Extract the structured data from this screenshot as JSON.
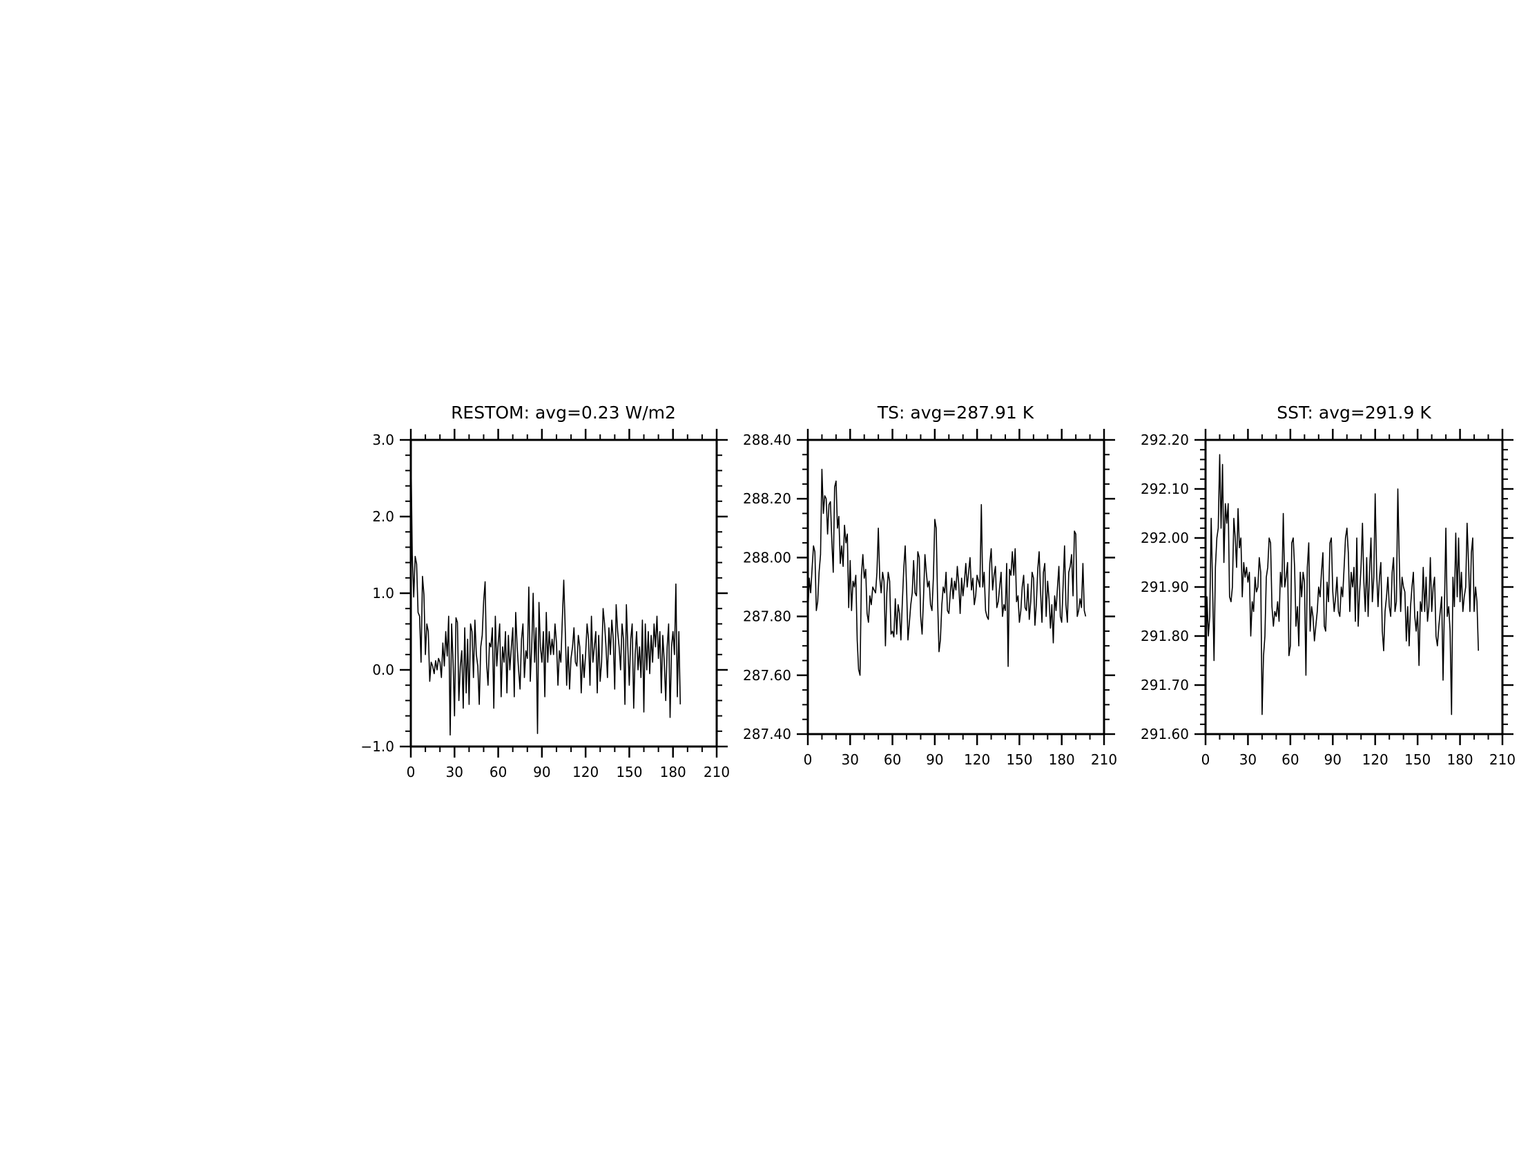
{
  "chart_data": [
    {
      "type": "line",
      "title": "RESTOM: avg=0.23 W/m2",
      "xlim": [
        0,
        210
      ],
      "ylim": [
        -1.0,
        3.0
      ],
      "xticks": [
        0,
        30,
        60,
        90,
        120,
        150,
        180,
        210
      ],
      "yticks": [
        -1.0,
        0.0,
        1.0,
        2.0,
        3.0
      ],
      "ytick_labels": [
        "−1.0",
        "0.0",
        "1.0",
        "2.0",
        "3.0"
      ],
      "x_minor_step": 10,
      "y_minor_step": 0.2,
      "grid": false,
      "legend": "none",
      "line_color": "#000000",
      "series": [
        {
          "x_start": 0,
          "x_step": 1,
          "values": [
            3.0,
            1.5,
            0.95,
            1.48,
            1.38,
            0.75,
            0.7,
            0.1,
            1.22,
            0.98,
            0.2,
            0.6,
            0.5,
            -0.15,
            0.1,
            0.05,
            -0.05,
            0.12,
            0.0,
            0.15,
            0.1,
            -0.1,
            0.35,
            0.05,
            0.5,
            0.18,
            0.7,
            -0.85,
            0.6,
            0.1,
            -0.6,
            0.68,
            0.62,
            -0.4,
            0.05,
            0.25,
            -0.5,
            0.55,
            -0.3,
            0.4,
            -0.45,
            0.6,
            0.5,
            -0.1,
            0.65,
            0.2,
            0.05,
            -0.45,
            0.3,
            0.45,
            0.9,
            1.15,
            0.1,
            -0.2,
            0.35,
            0.3,
            0.55,
            -0.5,
            0.7,
            0.05,
            0.35,
            0.6,
            -0.35,
            0.3,
            0.1,
            0.5,
            -0.3,
            0.45,
            0.0,
            0.3,
            0.55,
            -0.35,
            0.75,
            0.3,
            0.0,
            -0.25,
            0.4,
            0.6,
            -0.1,
            0.25,
            0.15,
            1.08,
            -0.15,
            0.3,
            1.0,
            0.1,
            0.55,
            -0.83,
            0.88,
            0.3,
            0.1,
            0.5,
            -0.35,
            0.75,
            0.1,
            0.5,
            0.2,
            0.4,
            0.2,
            0.6,
            0.35,
            -0.2,
            0.25,
            0.1,
            0.65,
            1.17,
            0.55,
            -0.2,
            0.3,
            -0.25,
            0.15,
            0.3,
            0.55,
            0.1,
            0.05,
            0.45,
            0.3,
            -0.3,
            0.2,
            -0.1,
            0.2,
            0.6,
            0.4,
            -0.2,
            0.7,
            0.1,
            0.3,
            0.5,
            -0.3,
            0.45,
            -0.15,
            0.1,
            0.8,
            0.6,
            0.3,
            -0.1,
            0.55,
            0.2,
            0.65,
            0.4,
            -0.25,
            0.85,
            0.5,
            0.3,
            0.0,
            0.6,
            0.4,
            -0.45,
            0.85,
            0.3,
            -0.2,
            0.4,
            0.6,
            -0.5,
            0.2,
            0.5,
            0.0,
            0.3,
            -0.1,
            0.65,
            -0.55,
            0.6,
            0.0,
            0.5,
            -0.05,
            0.45,
            0.1,
            0.6,
            0.3,
            0.7,
            0.15,
            0.5,
            -0.3,
            0.45,
            0.1,
            -0.4,
            0.3,
            0.6,
            -0.62,
            0.3,
            0.5,
            0.2,
            1.12,
            -0.35,
            0.5,
            -0.45
          ]
        }
      ]
    },
    {
      "type": "line",
      "title": "TS: avg=287.91 K",
      "xlim": [
        0,
        210
      ],
      "ylim": [
        287.4,
        288.4
      ],
      "xticks": [
        0,
        30,
        60,
        90,
        120,
        150,
        180,
        210
      ],
      "yticks": [
        287.4,
        287.6,
        287.8,
        288.0,
        288.2,
        288.4
      ],
      "ytick_labels": [
        "287.40",
        "287.60",
        "287.80",
        "288.00",
        "288.20",
        "288.40"
      ],
      "x_minor_step": 10,
      "y_minor_step": 0.05,
      "grid": false,
      "legend": "none",
      "line_color": "#000000",
      "series": [
        {
          "x_start": 0,
          "x_step": 1,
          "values": [
            287.8,
            287.93,
            287.88,
            287.96,
            288.04,
            288.02,
            287.82,
            287.85,
            287.95,
            288.01,
            288.3,
            288.15,
            288.21,
            288.2,
            288.08,
            288.18,
            288.19,
            288.06,
            287.95,
            288.24,
            288.26,
            288.1,
            288.14,
            287.98,
            288.04,
            287.97,
            288.11,
            288.05,
            288.08,
            287.83,
            287.99,
            287.82,
            287.92,
            287.9,
            287.94,
            287.72,
            287.62,
            287.6,
            287.94,
            288.01,
            287.93,
            287.96,
            287.81,
            287.78,
            287.87,
            287.84,
            287.9,
            287.89,
            287.88,
            287.95,
            288.1,
            287.93,
            287.88,
            287.95,
            287.92,
            287.7,
            287.88,
            287.95,
            287.92,
            287.74,
            287.75,
            287.73,
            287.86,
            287.74,
            287.84,
            287.81,
            287.72,
            287.85,
            287.96,
            288.04,
            287.9,
            287.72,
            287.78,
            287.84,
            287.88,
            287.99,
            287.88,
            287.87,
            288.02,
            288.0,
            287.8,
            287.74,
            287.86,
            288.01,
            287.95,
            287.9,
            287.92,
            287.84,
            287.82,
            287.93,
            288.13,
            288.1,
            287.86,
            287.68,
            287.72,
            287.84,
            287.9,
            287.88,
            287.95,
            287.82,
            287.81,
            287.88,
            287.93,
            287.86,
            287.92,
            287.89,
            287.97,
            287.91,
            287.81,
            287.93,
            287.87,
            287.92,
            287.98,
            287.9,
            287.95,
            288.0,
            287.89,
            287.93,
            287.84,
            287.87,
            287.94,
            287.92,
            287.9,
            288.18,
            287.9,
            287.95,
            287.82,
            287.8,
            287.79,
            287.98,
            288.03,
            287.89,
            287.94,
            287.97,
            287.83,
            287.85,
            287.9,
            287.95,
            287.8,
            287.84,
            287.82,
            287.98,
            287.63,
            287.96,
            287.94,
            288.02,
            287.94,
            288.03,
            287.85,
            287.87,
            287.78,
            287.82,
            287.9,
            287.94,
            287.83,
            287.82,
            287.91,
            287.79,
            287.85,
            287.95,
            287.93,
            287.77,
            287.84,
            287.96,
            288.02,
            287.88,
            287.78,
            287.95,
            287.98,
            287.8,
            287.92,
            287.86,
            287.76,
            287.84,
            287.71,
            287.87,
            287.82,
            287.9,
            287.97,
            287.8,
            287.78,
            287.91,
            288.04,
            287.84,
            287.78,
            287.95,
            287.97,
            288.01,
            287.87,
            288.09,
            288.08,
            287.8,
            287.82,
            287.86,
            287.83,
            287.98,
            287.82,
            287.8
          ]
        }
      ]
    },
    {
      "type": "line",
      "title": "SST: avg=291.9 K",
      "xlim": [
        0,
        210
      ],
      "ylim": [
        291.6,
        292.2
      ],
      "xticks": [
        0,
        30,
        60,
        90,
        120,
        150,
        180,
        210
      ],
      "yticks": [
        291.6,
        291.7,
        291.8,
        291.9,
        292.0,
        292.1,
        292.2
      ],
      "ytick_labels": [
        "291.60",
        "291.70",
        "291.80",
        "291.90",
        "292.00",
        "292.10",
        "292.20"
      ],
      "x_minor_step": 10,
      "y_minor_step": 0.02,
      "grid": false,
      "legend": "none",
      "line_color": "#000000",
      "series": [
        {
          "x_start": 0,
          "x_step": 1,
          "values": [
            291.64,
            291.88,
            291.8,
            291.84,
            292.04,
            291.9,
            291.75,
            291.94,
            292.0,
            292.02,
            292.17,
            292.02,
            292.15,
            291.95,
            292.07,
            292.03,
            292.07,
            291.88,
            291.87,
            291.9,
            292.04,
            292.0,
            291.94,
            292.06,
            291.98,
            292.0,
            291.88,
            291.95,
            291.92,
            291.94,
            291.91,
            291.93,
            291.8,
            291.87,
            291.85,
            291.92,
            291.89,
            291.9,
            291.96,
            291.93,
            291.64,
            291.76,
            291.8,
            291.92,
            291.94,
            292.0,
            291.99,
            291.86,
            291.82,
            291.85,
            291.84,
            291.87,
            291.83,
            291.93,
            291.9,
            292.05,
            291.9,
            291.92,
            291.95,
            291.76,
            291.78,
            291.99,
            292.0,
            291.94,
            291.82,
            291.86,
            291.78,
            291.93,
            291.88,
            291.93,
            291.91,
            291.72,
            291.94,
            291.99,
            291.81,
            291.86,
            291.84,
            291.79,
            291.82,
            291.85,
            291.9,
            291.88,
            291.93,
            291.97,
            291.82,
            291.81,
            291.91,
            291.87,
            291.99,
            292.0,
            291.89,
            291.85,
            291.88,
            291.92,
            291.85,
            291.84,
            291.9,
            291.88,
            291.94,
            292.0,
            292.02,
            291.97,
            291.85,
            291.93,
            291.9,
            291.94,
            291.83,
            292.0,
            291.82,
            291.89,
            291.94,
            292.03,
            291.91,
            291.85,
            291.96,
            291.84,
            291.93,
            292.0,
            291.87,
            291.92,
            292.09,
            291.93,
            291.86,
            291.92,
            291.95,
            291.81,
            291.77,
            291.85,
            291.88,
            291.92,
            291.86,
            291.84,
            291.93,
            291.96,
            291.85,
            291.87,
            292.1,
            291.96,
            291.85,
            291.92,
            291.9,
            291.89,
            291.79,
            291.86,
            291.78,
            291.86,
            291.9,
            291.93,
            291.84,
            291.81,
            291.85,
            291.74,
            291.87,
            291.85,
            291.94,
            291.85,
            291.92,
            291.83,
            291.86,
            291.96,
            291.85,
            291.9,
            291.92,
            291.8,
            291.78,
            291.82,
            291.85,
            291.88,
            291.71,
            291.86,
            292.02,
            291.84,
            291.86,
            291.81,
            291.64,
            291.92,
            291.86,
            292.01,
            291.88,
            292.0,
            291.87,
            291.93,
            291.85,
            291.88,
            291.9,
            292.03,
            291.95,
            291.85,
            291.97,
            292.0,
            291.85,
            291.9,
            291.87,
            291.77
          ]
        }
      ]
    }
  ]
}
